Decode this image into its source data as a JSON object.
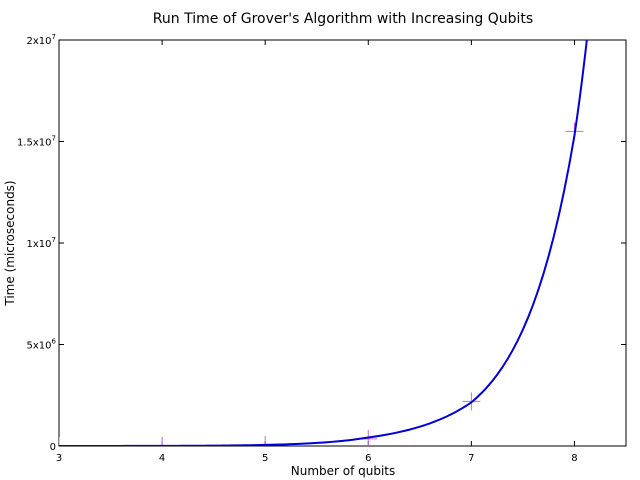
{
  "chart_data": {
    "type": "line",
    "title": "Run Time of Grover's Algorithm with Increasing Qubits",
    "xlabel": "Number of qubits",
    "ylabel": "Time (microseconds)",
    "xlim": [
      3,
      8.5
    ],
    "ylim": [
      0,
      20000000
    ],
    "x_ticks": [
      3,
      4,
      5,
      6,
      7,
      8
    ],
    "y_ticks": [
      {
        "value": 0,
        "base": "0",
        "exp": ""
      },
      {
        "value": 5000000,
        "base": "5x10",
        "exp": "6"
      },
      {
        "value": 10000000,
        "base": "1x10",
        "exp": "7"
      },
      {
        "value": 15000000,
        "base": "1.5x10",
        "exp": "7"
      },
      {
        "value": 20000000,
        "base": "2x10",
        "exp": "7"
      }
    ],
    "grid": false,
    "legend": "none",
    "series": [
      {
        "type": "scatter",
        "marker": "+",
        "color": "#cc66ee",
        "points": [
          {
            "x": 3,
            "y": 0
          },
          {
            "x": 4,
            "y": 0
          },
          {
            "x": 5,
            "y": 50000
          },
          {
            "x": 6,
            "y": 350000
          },
          {
            "x": 7,
            "y": 2200000
          },
          {
            "x": 8,
            "y": 15500000
          }
        ]
      },
      {
        "type": "line",
        "color": "#0000dd",
        "fit": "exponential",
        "x": [
          3,
          4,
          5,
          6,
          7,
          8,
          8.12
        ],
        "y": [
          1000,
          6500,
          55000,
          420000,
          2150000,
          15300000,
          20000000
        ]
      }
    ]
  }
}
